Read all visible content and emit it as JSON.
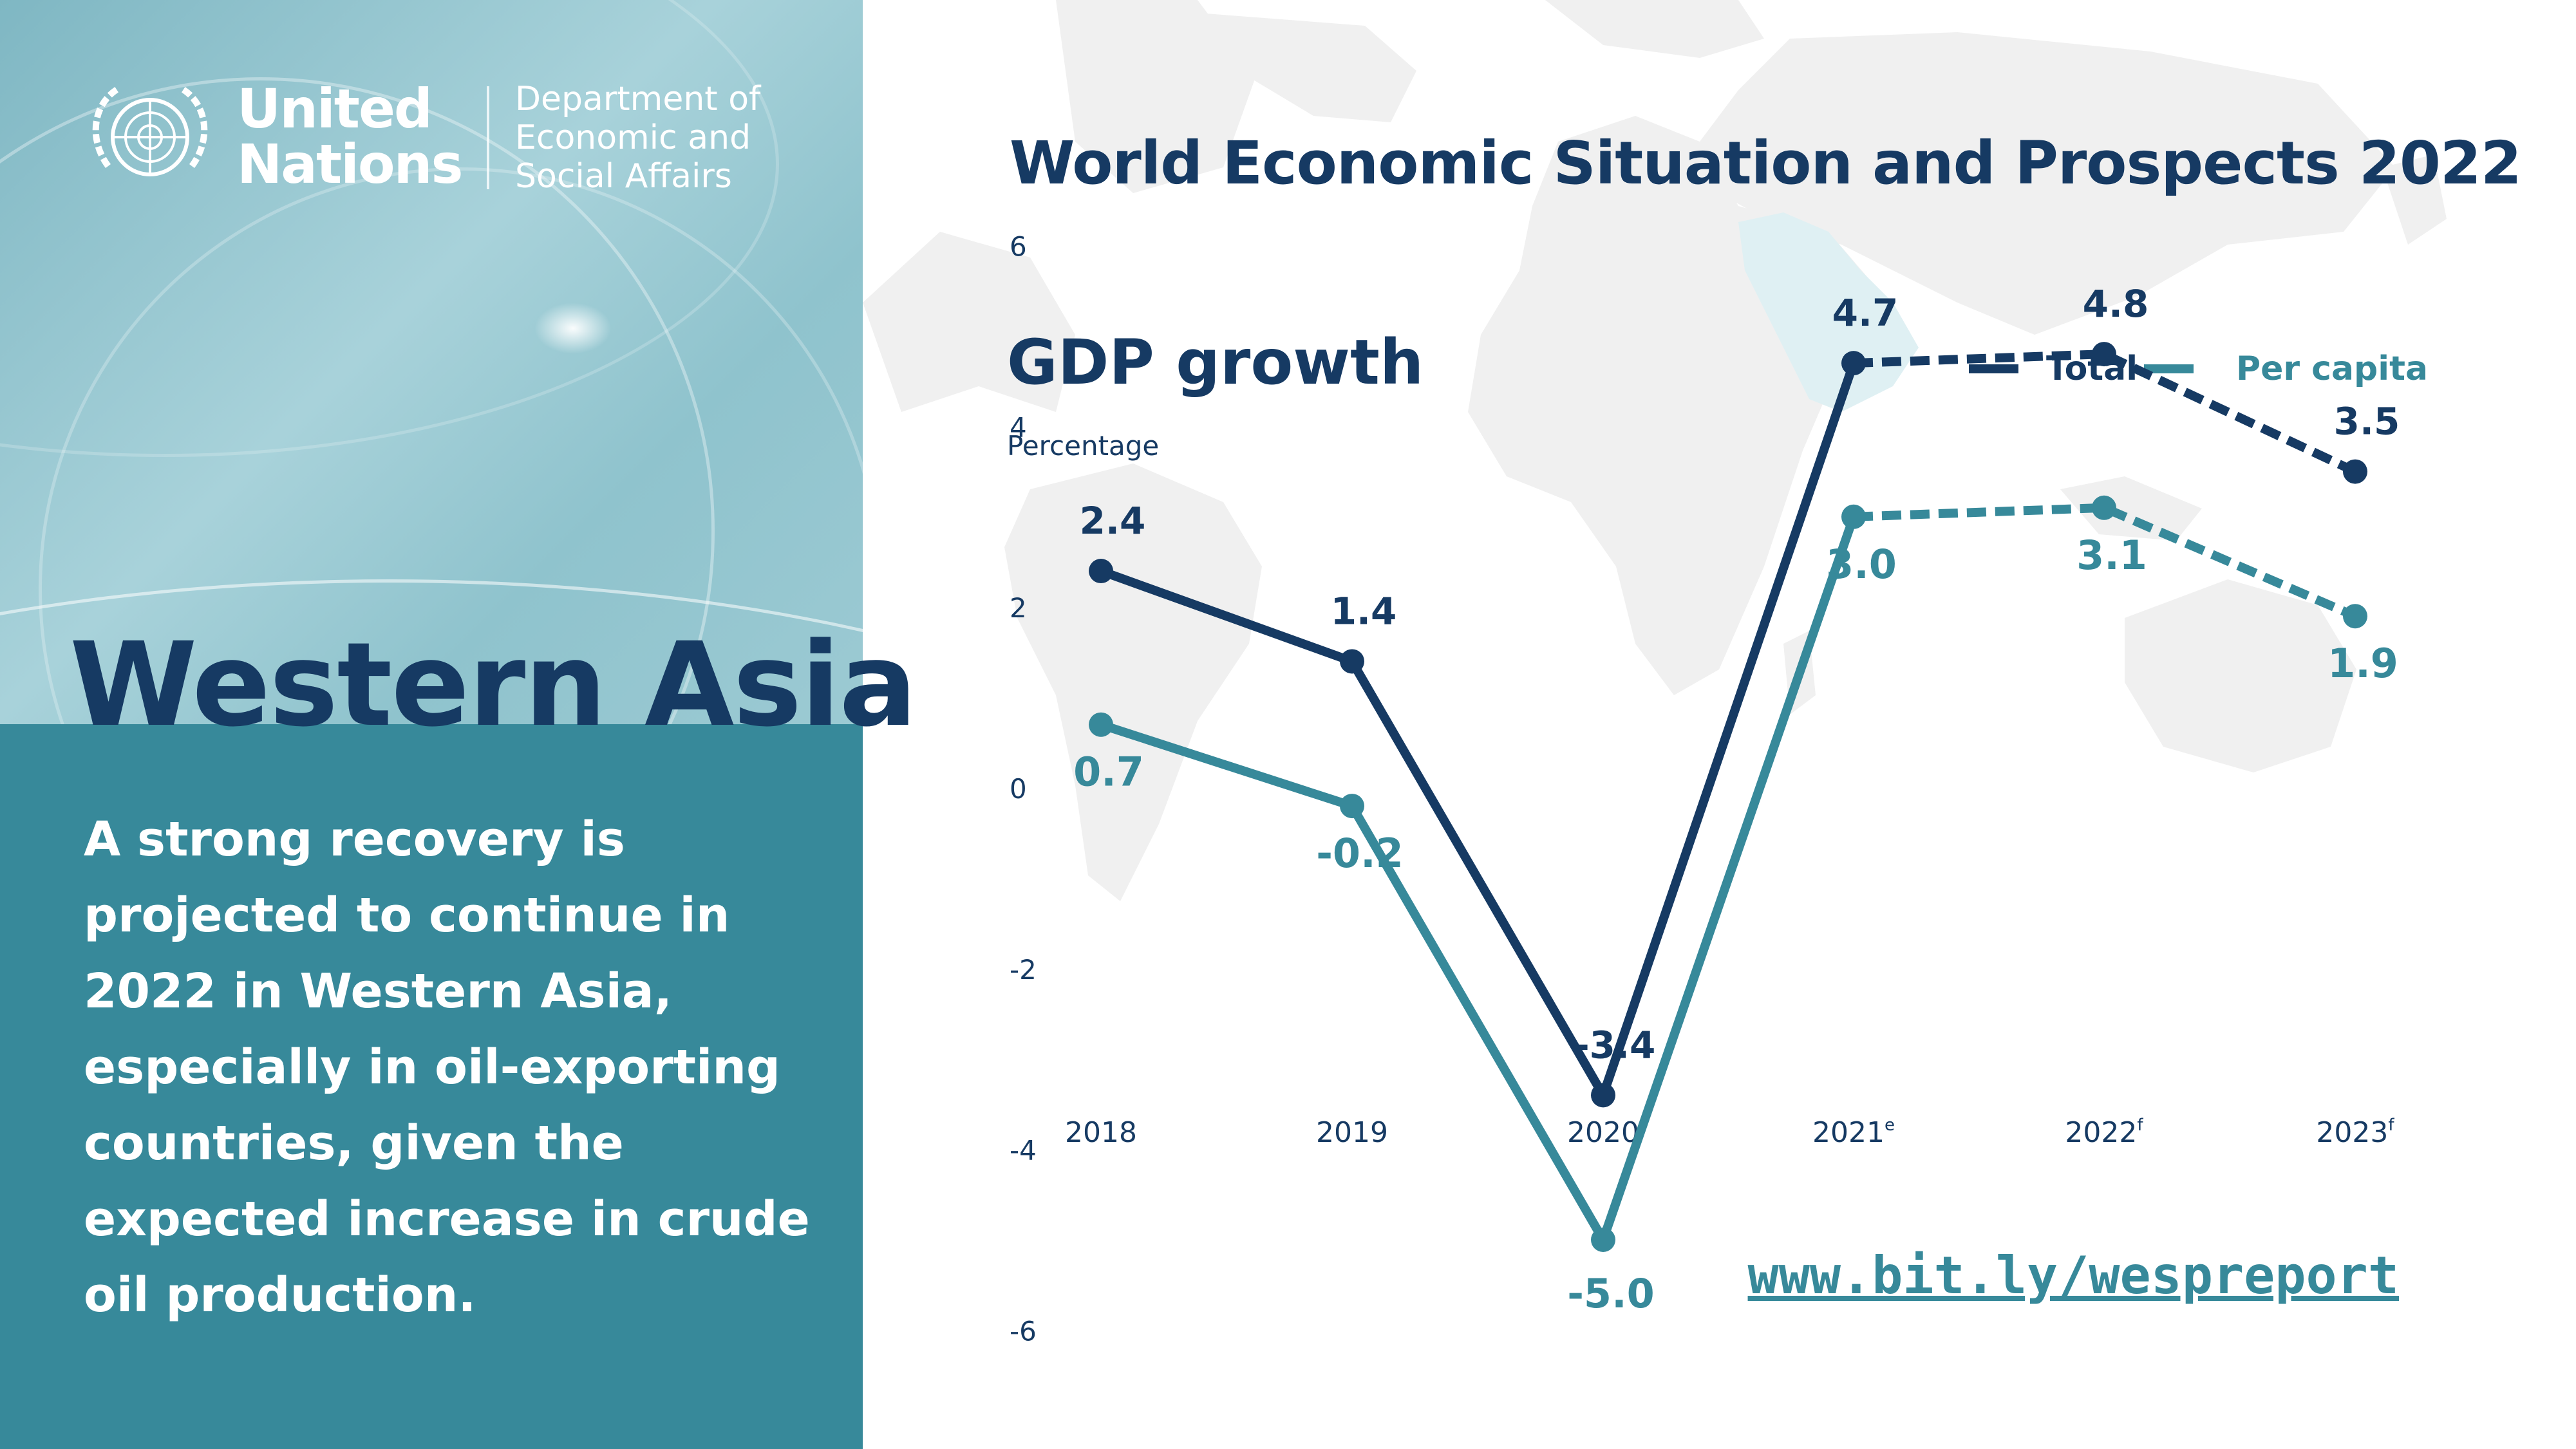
{
  "org": {
    "name_line1": "United",
    "name_line2": "Nations",
    "dept_line1": "Department of",
    "dept_line2": "Economic and",
    "dept_line3": "Social Affairs",
    "emblem_icon": "un-emblem-icon"
  },
  "report_title": "World Economic Situation and Prospects 2022",
  "region": "Western Asia",
  "summary": "A strong recovery is projected to continue in 2022 in Western Asia, especially in oil-exporting countries, given the expected increase in crude oil production.",
  "link": "www.bit.ly/wespreport",
  "colors": {
    "total": "#163a63",
    "per_capita": "#37899a",
    "panel_bottom": "#37899a",
    "background_map": "#f0f0f0"
  },
  "chart_data": {
    "type": "line",
    "title": "GDP growth",
    "ylabel": "Percentage",
    "xlabel": "",
    "categories": [
      "2018",
      "2019",
      "2020",
      "2021",
      "2022",
      "2023"
    ],
    "category_superscripts": [
      "",
      "",
      "",
      "e",
      "f",
      "f"
    ],
    "yticks": [
      "6",
      "4",
      "2",
      "0",
      "-2",
      "-4",
      "-6"
    ],
    "ylim": [
      -6,
      6
    ],
    "legend_position": "top-right",
    "grid": false,
    "series": [
      {
        "name": "Total",
        "values": [
          2.4,
          1.4,
          -3.4,
          4.7,
          4.8,
          3.5
        ],
        "labels": [
          "2.4",
          "1.4",
          "-3.4",
          "4.7",
          "4.8",
          "3.5"
        ],
        "dashed_from_index": 3
      },
      {
        "name": "Per capita",
        "values": [
          0.7,
          -0.2,
          -5.0,
          3.0,
          3.1,
          1.9
        ],
        "labels": [
          "0.7",
          "-0.2",
          "-5.0",
          "3.0",
          "3.1",
          "1.9"
        ],
        "dashed_from_index": 3
      }
    ]
  }
}
